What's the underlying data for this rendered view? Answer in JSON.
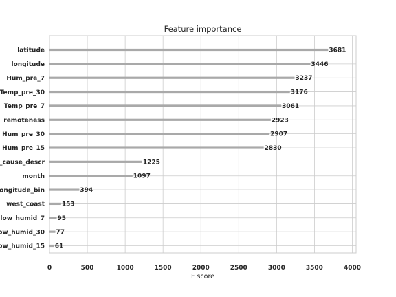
{
  "chart_data": {
    "type": "bar",
    "orientation": "horizontal",
    "title": "Feature importance",
    "xlabel": "F score",
    "ylabel": "",
    "xlim": [
      0,
      4050
    ],
    "xticks": [
      0,
      500,
      1000,
      1500,
      2000,
      2500,
      3000,
      3500,
      4000
    ],
    "grid": true,
    "categories": [
      "latitude",
      "longitude",
      "Hum_pre_7",
      "Temp_pre_30",
      "Temp_pre_7",
      "remoteness",
      "Hum_pre_30",
      "Hum_pre_15",
      "_cause_descr",
      "month",
      "longitude_bin",
      "west_coast",
      "low_humid_7",
      "ow_humid_30",
      "ow_humid_15"
    ],
    "values": [
      3681,
      3446,
      3237,
      3176,
      3061,
      2923,
      2907,
      2830,
      1225,
      1097,
      394,
      153,
      95,
      77,
      61
    ],
    "bar_color": "#a9a9a9",
    "grid_color": "#cccccc"
  }
}
